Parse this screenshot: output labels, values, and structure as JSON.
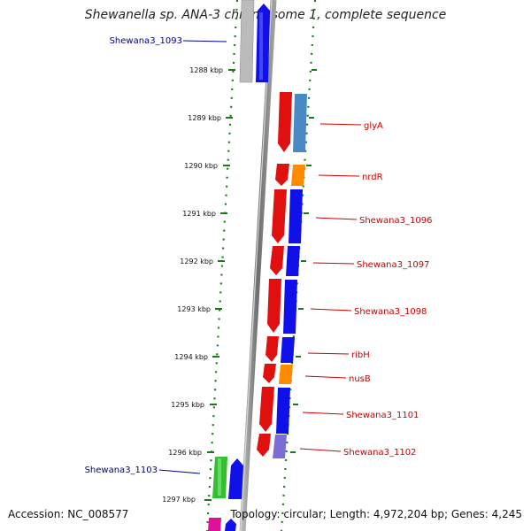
{
  "title": "Shewanella sp. ANA-3 chromosome 1, complete sequence",
  "footer": {
    "accession": "Accession: NC_008577",
    "topology": "Topology: circular; Length: 4,972,204 bp; Genes: 4,245"
  },
  "ticks": [
    "1288 kbp",
    "1289 kbp",
    "1290 kbp",
    "1291 kbp",
    "1292 kbp",
    "1293 kbp",
    "1294 kbp",
    "1295 kbp",
    "1296 kbp",
    "1297 kbp"
  ],
  "genes_left": [
    "Shewana3_1093",
    "Shewana3_1103"
  ],
  "genes_right": [
    "glyA",
    "nrdR",
    "Shewana3_1096",
    "Shewana3_1097",
    "Shewana3_1098",
    "ribH",
    "nusB",
    "Shewana3_1101",
    "Shewana3_1102"
  ],
  "colors": {
    "backbone": "#8c8c8c",
    "dotted": "#1a7a1a",
    "left_label": "#00008b",
    "right_label": "#cc0000",
    "red": "#e01010",
    "blue": "#1010e8",
    "steelblue": "#4a8ac4",
    "orange": "#ff8c00",
    "green": "#30c030",
    "gray": "#bbbbbb",
    "slate": "#7a6ed6",
    "magenta": "#e0109a"
  }
}
